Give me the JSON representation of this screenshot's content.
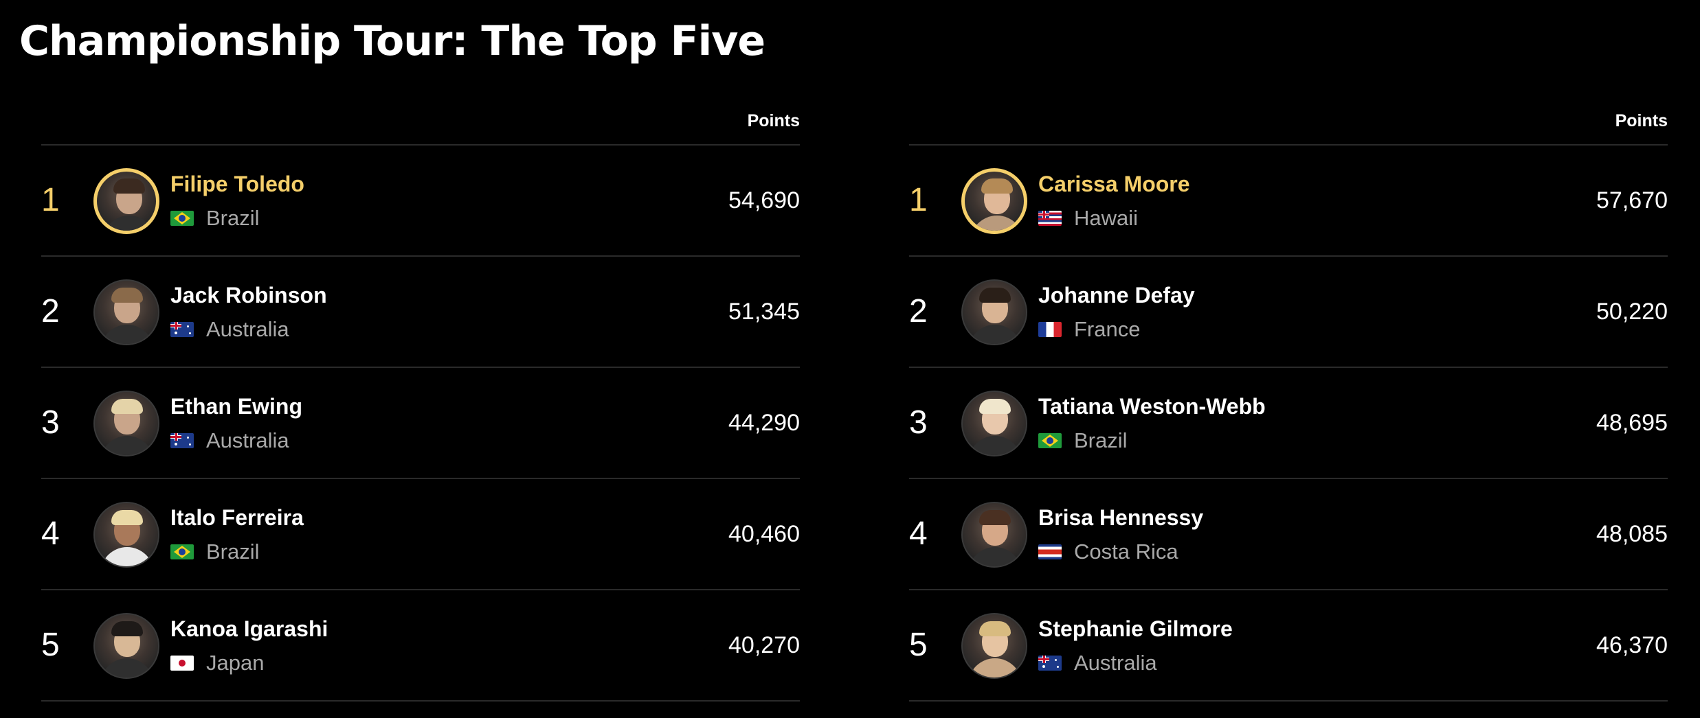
{
  "page": {
    "title": "Championship Tour: The Top Five"
  },
  "colors": {
    "background": "#000000",
    "leader_accent": "#f5cf6a",
    "secondary_text": "#a9a9a9",
    "divider": "#2a2a2a"
  },
  "boards": [
    {
      "points_header": "Points",
      "rows": [
        {
          "rank": "1",
          "name": "Filipe Toledo",
          "country": "Brazil",
          "flag": "brazil-flag-icon",
          "points": "54,690",
          "leader": true
        },
        {
          "rank": "2",
          "name": "Jack Robinson",
          "country": "Australia",
          "flag": "australia-flag-icon",
          "points": "51,345",
          "leader": false
        },
        {
          "rank": "3",
          "name": "Ethan Ewing",
          "country": "Australia",
          "flag": "australia-flag-icon",
          "points": "44,290",
          "leader": false
        },
        {
          "rank": "4",
          "name": "Italo Ferreira",
          "country": "Brazil",
          "flag": "brazil-flag-icon",
          "points": "40,460",
          "leader": false
        },
        {
          "rank": "5",
          "name": "Kanoa Igarashi",
          "country": "Japan",
          "flag": "japan-flag-icon",
          "points": "40,270",
          "leader": false
        }
      ]
    },
    {
      "points_header": "Points",
      "rows": [
        {
          "rank": "1",
          "name": "Carissa Moore",
          "country": "Hawaii",
          "flag": "hawaii-flag-icon",
          "points": "57,670",
          "leader": true
        },
        {
          "rank": "2",
          "name": "Johanne Defay",
          "country": "France",
          "flag": "france-flag-icon",
          "points": "50,220",
          "leader": false
        },
        {
          "rank": "3",
          "name": "Tatiana Weston-Webb",
          "country": "Brazil",
          "flag": "brazil-flag-icon",
          "points": "48,695",
          "leader": false
        },
        {
          "rank": "4",
          "name": "Brisa Hennessy",
          "country": "Costa Rica",
          "flag": "costa-rica-flag-icon",
          "points": "48,085",
          "leader": false
        },
        {
          "rank": "5",
          "name": "Stephanie Gilmore",
          "country": "Australia",
          "flag": "australia-flag-icon",
          "points": "46,370",
          "leader": false
        }
      ]
    }
  ]
}
